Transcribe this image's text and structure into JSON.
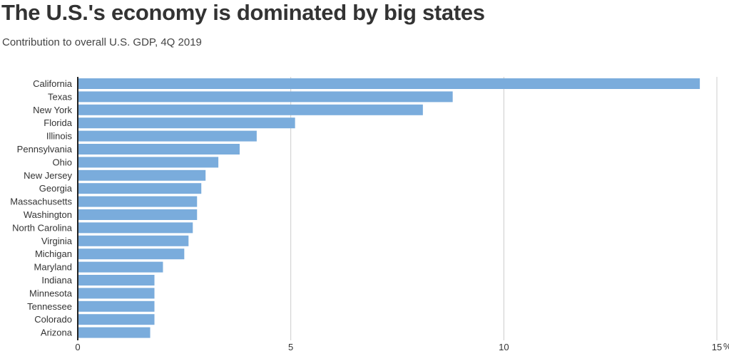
{
  "chart_data": {
    "type": "bar",
    "orientation": "horizontal",
    "title": "The U.S.'s economy is dominated by big states",
    "subtitle": "Contribution to overall U.S. GDP, 4Q 2019",
    "categories": [
      "California",
      "Texas",
      "New York",
      "Florida",
      "Illinois",
      "Pennsylvania",
      "Ohio",
      "New Jersey",
      "Georgia",
      "Massachusetts",
      "Washington",
      "North Carolina",
      "Virginia",
      "Michigan",
      "Maryland",
      "Indiana",
      "Minnesota",
      "Tennessee",
      "Colorado",
      "Arizona"
    ],
    "values": [
      14.6,
      8.8,
      8.1,
      5.1,
      4.2,
      3.8,
      3.3,
      3.0,
      2.9,
      2.8,
      2.8,
      2.7,
      2.6,
      2.5,
      2.0,
      1.8,
      1.8,
      1.8,
      1.8,
      1.7
    ],
    "xlim": [
      0,
      15
    ],
    "xticks": [
      0,
      5,
      10,
      15
    ],
    "xtick_labels": [
      "0",
      "5",
      "10",
      "15"
    ],
    "x_unit": "%",
    "grid": true,
    "colors": {
      "bar": "#7aacdc",
      "grid": "#cccccc",
      "axis": "#222222",
      "text": "#333333"
    }
  }
}
